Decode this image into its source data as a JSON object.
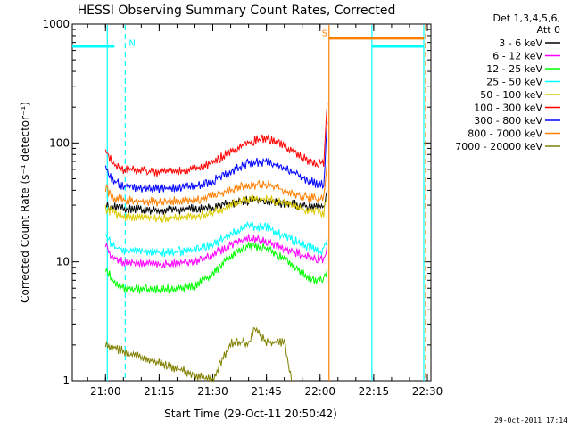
{
  "chart_data": {
    "type": "line",
    "title": "HESSI Observing Summary Count Rates, Corrected",
    "xlabel": "Start Time (29-Oct-11 20:50:42)",
    "ylabel": "Corrected Count Rate (s⁻¹ detector⁻¹)",
    "yscale": "log",
    "ylim": [
      1,
      1000
    ],
    "y_ticks": [
      {
        "value": 1,
        "label": "1"
      },
      {
        "value": 10,
        "label": "10"
      },
      {
        "value": 100,
        "label": "100"
      },
      {
        "value": 1000,
        "label": "1000"
      }
    ],
    "xlim": [
      "20:50:42",
      "22:31:00"
    ],
    "x_ticks": [
      {
        "t": "21:00",
        "label": "21:00"
      },
      {
        "t": "21:15",
        "label": "21:15"
      },
      {
        "t": "21:30",
        "label": "21:30"
      },
      {
        "t": "21:45",
        "label": "21:45"
      },
      {
        "t": "22:00",
        "label": "22:00"
      },
      {
        "t": "22:15",
        "label": "22:15"
      },
      {
        "t": "22:30",
        "label": "22:30"
      }
    ],
    "legend": {
      "placement": "right",
      "header": [
        "Det 1,3,4,5,6,",
        "Att 0"
      ]
    },
    "series": [
      {
        "name": "3 - 6 keV",
        "color": "#000000",
        "t": [
          "21:00",
          "21:02",
          "21:05",
          "21:15",
          "21:25",
          "21:30",
          "21:35",
          "21:40",
          "21:45",
          "21:50",
          "21:55",
          "21:59",
          "22:01",
          "22:02"
        ],
        "values": [
          30,
          29,
          28,
          27,
          28,
          29,
          31,
          33,
          33,
          31,
          30,
          29,
          30,
          40
        ]
      },
      {
        "name": "6 - 12 keV",
        "color": "#ff00ff",
        "t": [
          "21:00",
          "21:02",
          "21:05",
          "21:15",
          "21:25",
          "21:30",
          "21:35",
          "21:40",
          "21:45",
          "21:50",
          "21:55",
          "21:59",
          "22:01",
          "22:02"
        ],
        "values": [
          14,
          11,
          10,
          9.5,
          10,
          11.5,
          14,
          16,
          15,
          13,
          11.5,
          10.5,
          10.5,
          14
        ]
      },
      {
        "name": "12 - 25 keV",
        "color": "#00ff00",
        "t": [
          "21:00",
          "21:02",
          "21:05",
          "21:15",
          "21:25",
          "21:30",
          "21:35",
          "21:40",
          "21:45",
          "21:50",
          "21:55",
          "21:59",
          "22:01",
          "22:02"
        ],
        "values": [
          9,
          7,
          6,
          5.8,
          6.2,
          8,
          11,
          13.5,
          13,
          10.5,
          8,
          7,
          7,
          9
        ]
      },
      {
        "name": "25 - 50 keV",
        "color": "#00ffff",
        "t": [
          "21:00",
          "21:02",
          "21:05",
          "21:15",
          "21:25",
          "21:30",
          "21:35",
          "21:40",
          "21:45",
          "21:50",
          "21:55",
          "21:59",
          "22:01",
          "22:02"
        ],
        "values": [
          17,
          13.5,
          12.5,
          12,
          12.5,
          14,
          17,
          20,
          19.5,
          16.5,
          14,
          12.5,
          12,
          16
        ]
      },
      {
        "name": "50 - 100 keV",
        "color": "#ddcc00",
        "t": [
          "21:00",
          "21:02",
          "21:05",
          "21:15",
          "21:25",
          "21:30",
          "21:35",
          "21:40",
          "21:45",
          "21:50",
          "21:55",
          "21:59",
          "22:01",
          "22:02"
        ],
        "values": [
          28,
          26,
          24,
          23,
          24,
          26,
          30,
          34,
          34,
          31,
          28,
          26,
          26,
          35
        ]
      },
      {
        "name": "100 - 300 keV",
        "color": "#ff0000",
        "t": [
          "21:00",
          "21:02",
          "21:05",
          "21:15",
          "21:25",
          "21:30",
          "21:35",
          "21:40",
          "21:45",
          "21:50",
          "21:55",
          "21:59",
          "22:01",
          "22:02"
        ],
        "values": [
          85,
          68,
          60,
          57,
          60,
          68,
          85,
          102,
          110,
          95,
          75,
          67,
          68,
          220
        ]
      },
      {
        "name": "300 - 800 keV",
        "color": "#0000ff",
        "t": [
          "21:00",
          "21:02",
          "21:05",
          "21:15",
          "21:25",
          "21:30",
          "21:35",
          "21:40",
          "21:45",
          "21:50",
          "21:55",
          "21:59",
          "22:01",
          "22:02"
        ],
        "values": [
          62,
          48,
          43,
          41,
          43,
          48,
          58,
          68,
          70,
          62,
          51,
          45,
          45,
          150
        ]
      },
      {
        "name": "800 - 7000 keV",
        "color": "#ff8000",
        "t": [
          "21:00",
          "21:02",
          "21:05",
          "21:15",
          "21:25",
          "21:30",
          "21:35",
          "21:40",
          "21:45",
          "21:50",
          "21:55",
          "21:59",
          "22:01",
          "22:02"
        ],
        "values": [
          42,
          35,
          33,
          32,
          33,
          36,
          40,
          44,
          45,
          40,
          36,
          34,
          35,
          70
        ]
      },
      {
        "name": "7000 - 20000 keV",
        "color": "#808000",
        "t": [
          "21:00",
          "21:30",
          "21:35",
          "21:40",
          "21:42",
          "21:45",
          "21:50",
          "21:52"
        ],
        "values": [
          2,
          1,
          2.1,
          2.1,
          2.8,
          2.1,
          2.1,
          1
        ]
      }
    ],
    "segments": [
      {
        "label": "",
        "color": "#00ffff",
        "t": [
          "20:50:42",
          "21:02:30"
        ],
        "value": 650
      },
      {
        "label": "",
        "color": "#00ffff",
        "t": [
          "22:14:30",
          "22:29:00"
        ],
        "value": 650
      },
      {
        "label": "",
        "color": "#ff8000",
        "t": [
          "22:02:30",
          "22:29:00"
        ],
        "value": 760
      }
    ],
    "vertical_lines": [
      {
        "t": "21:00:30",
        "color": "#00ffff",
        "style": "solid"
      },
      {
        "t": "21:05:30",
        "color": "#00ffff",
        "style": "dashed"
      },
      {
        "t": "22:02:30",
        "color": "#ff8000",
        "style": "solid"
      },
      {
        "t": "22:14:30",
        "color": "#00ffff",
        "style": "solid"
      },
      {
        "t": "22:29:00",
        "color": "#00ffff",
        "style": "solid"
      },
      {
        "t": "22:29:30",
        "color": "#ff8000",
        "style": "dashed"
      }
    ],
    "annotations": [
      {
        "text": "N",
        "color": "#00ffff",
        "t": "21:06:30",
        "value": 700
      },
      {
        "text": "S",
        "color": "#ff8000",
        "t": "22:00:30",
        "value": 850
      }
    ],
    "timestamp": "29-Oct-2011 17:14"
  }
}
